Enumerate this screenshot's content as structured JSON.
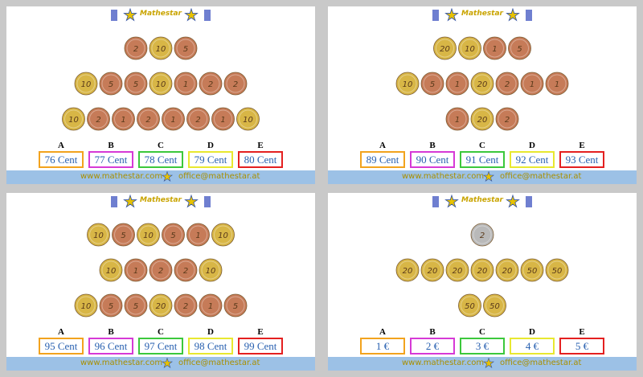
{
  "panels": [
    {
      "logo": "Mathestar",
      "coin_rows": [
        [
          {
            "label": "2",
            "color": "#c67b58"
          },
          {
            "label": "10",
            "color": "#d8b646"
          },
          {
            "label": "5",
            "color": "#c67b58"
          }
        ],
        [
          {
            "label": "10",
            "color": "#d8b646"
          },
          {
            "label": "5",
            "color": "#c67b58"
          },
          {
            "label": "5",
            "color": "#c67b58"
          },
          {
            "label": "10",
            "color": "#d8b646"
          },
          {
            "label": "1",
            "color": "#c67b58"
          },
          {
            "label": "2",
            "color": "#c67b58"
          },
          {
            "label": "2",
            "color": "#c67b58"
          }
        ],
        [
          {
            "label": "10",
            "color": "#d8b646"
          },
          {
            "label": "2",
            "color": "#c67b58"
          },
          {
            "label": "1",
            "color": "#c67b58"
          },
          {
            "label": "2",
            "color": "#c67b58"
          },
          {
            "label": "1",
            "color": "#c67b58"
          },
          {
            "label": "2",
            "color": "#c67b58"
          },
          {
            "label": "1",
            "color": "#c67b58"
          },
          {
            "label": "10",
            "color": "#d8b646"
          }
        ]
      ],
      "options": [
        {
          "letter": "A",
          "text": "76 Cent",
          "color": "#f2a31e"
        },
        {
          "letter": "B",
          "text": "77 Cent",
          "color": "#d63ad6"
        },
        {
          "letter": "C",
          "text": "78 Cent",
          "color": "#3cc83c"
        },
        {
          "letter": "D",
          "text": "79 Cent",
          "color": "#e8e830"
        },
        {
          "letter": "E",
          "text": "80 Cent",
          "color": "#e42020"
        }
      ],
      "footer": {
        "website": "www.mathestar.com",
        "email": "office@mathestar.at"
      }
    },
    {
      "logo": "Mathestar",
      "coin_rows": [
        [
          {
            "label": "20",
            "color": "#d8b646"
          },
          {
            "label": "10",
            "color": "#d8b646"
          },
          {
            "label": "1",
            "color": "#c67b58"
          },
          {
            "label": "5",
            "color": "#c67b58"
          }
        ],
        [
          {
            "label": "10",
            "color": "#d8b646"
          },
          {
            "label": "5",
            "color": "#c67b58"
          },
          {
            "label": "1",
            "color": "#c67b58"
          },
          {
            "label": "20",
            "color": "#d8b646"
          },
          {
            "label": "2",
            "color": "#c67b58"
          },
          {
            "label": "1",
            "color": "#c67b58"
          },
          {
            "label": "1",
            "color": "#c67b58"
          }
        ],
        [
          {
            "label": "1",
            "color": "#c67b58"
          },
          {
            "label": "20",
            "color": "#d8b646"
          },
          {
            "label": "2",
            "color": "#c67b58"
          }
        ]
      ],
      "options": [
        {
          "letter": "A",
          "text": "89 Cent",
          "color": "#f2a31e"
        },
        {
          "letter": "B",
          "text": "90 Cent",
          "color": "#d63ad6"
        },
        {
          "letter": "C",
          "text": "91 Cent",
          "color": "#3cc83c"
        },
        {
          "letter": "D",
          "text": "92 Cent",
          "color": "#e8e830"
        },
        {
          "letter": "E",
          "text": "93 Cent",
          "color": "#e42020"
        }
      ],
      "footer": {
        "website": "www.mathestar.com",
        "email": "office@mathestar.at"
      }
    },
    {
      "logo": "Mathestar",
      "coin_rows": [
        [
          {
            "label": "10",
            "color": "#d8b646"
          },
          {
            "label": "5",
            "color": "#c67b58"
          },
          {
            "label": "10",
            "color": "#d8b646"
          },
          {
            "label": "5",
            "color": "#c67b58"
          },
          {
            "label": "1",
            "color": "#c67b58"
          },
          {
            "label": "10",
            "color": "#d8b646"
          }
        ],
        [
          {
            "label": "10",
            "color": "#d8b646"
          },
          {
            "label": "1",
            "color": "#c67b58"
          },
          {
            "label": "2",
            "color": "#c67b58"
          },
          {
            "label": "2",
            "color": "#c67b58"
          },
          {
            "label": "10",
            "color": "#d8b646"
          }
        ],
        [
          {
            "label": "10",
            "color": "#d8b646"
          },
          {
            "label": "5",
            "color": "#c67b58"
          },
          {
            "label": "5",
            "color": "#c67b58"
          },
          {
            "label": "20",
            "color": "#d8b646"
          },
          {
            "label": "2",
            "color": "#c67b58"
          },
          {
            "label": "1",
            "color": "#c67b58"
          },
          {
            "label": "5",
            "color": "#c67b58"
          }
        ]
      ],
      "options": [
        {
          "letter": "A",
          "text": "95 Cent",
          "color": "#f2a31e"
        },
        {
          "letter": "B",
          "text": "96 Cent",
          "color": "#d63ad6"
        },
        {
          "letter": "C",
          "text": "97 Cent",
          "color": "#3cc83c"
        },
        {
          "letter": "D",
          "text": "98 Cent",
          "color": "#e8e830"
        },
        {
          "letter": "E",
          "text": "99 Cent",
          "color": "#e42020"
        }
      ],
      "footer": {
        "website": "www.mathestar.com",
        "email": "office@mathestar.at"
      }
    },
    {
      "logo": "Mathestar",
      "coin_rows": [
        [
          {
            "label": "2",
            "color": "#b9b9b9"
          }
        ],
        [
          {
            "label": "20",
            "color": "#d8b646"
          },
          {
            "label": "20",
            "color": "#d8b646"
          },
          {
            "label": "20",
            "color": "#d8b646"
          },
          {
            "label": "20",
            "color": "#d8b646"
          },
          {
            "label": "20",
            "color": "#d8b646"
          },
          {
            "label": "50",
            "color": "#d8b646"
          },
          {
            "label": "50",
            "color": "#d8b646"
          }
        ],
        [
          {
            "label": "50",
            "color": "#d8b646"
          },
          {
            "label": "50",
            "color": "#d8b646"
          }
        ]
      ],
      "options": [
        {
          "letter": "A",
          "text": "1 €",
          "color": "#f2a31e"
        },
        {
          "letter": "B",
          "text": "2 €",
          "color": "#d63ad6"
        },
        {
          "letter": "C",
          "text": "3 €",
          "color": "#3cc83c"
        },
        {
          "letter": "D",
          "text": "4 €",
          "color": "#e8e830"
        },
        {
          "letter": "E",
          "text": "5 €",
          "color": "#e42020"
        }
      ],
      "footer": {
        "website": "www.mathestar.com",
        "email": "office@mathestar.at"
      }
    }
  ]
}
